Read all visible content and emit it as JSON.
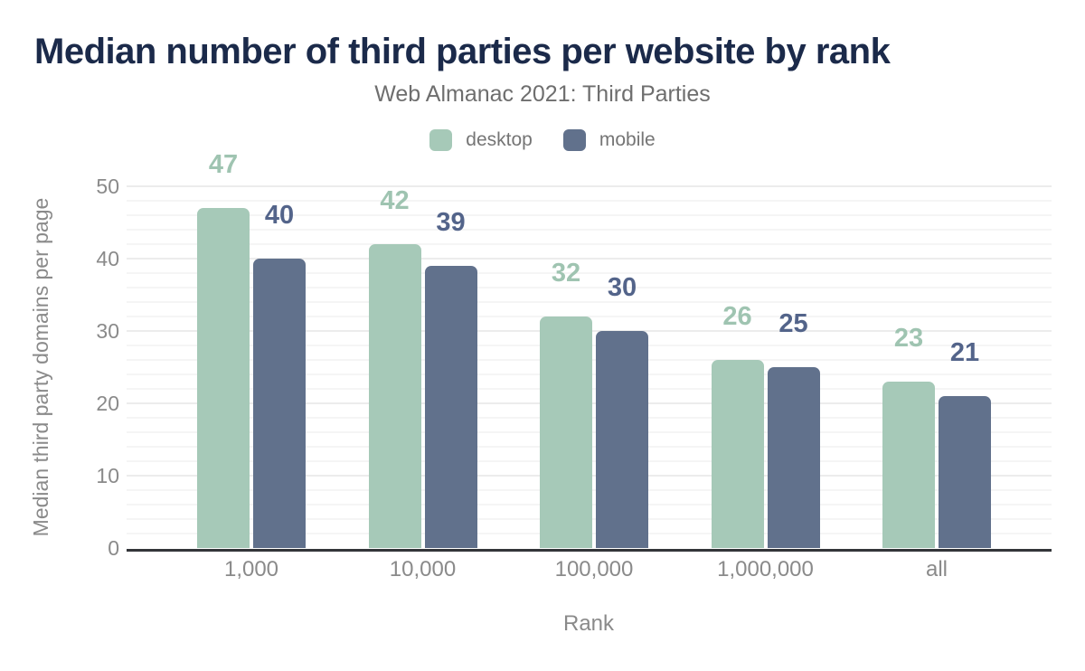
{
  "chart_data": {
    "type": "bar",
    "title": "Median number of third parties per website by rank",
    "subtitle": "Web Almanac 2021: Third Parties",
    "xlabel": "Rank",
    "ylabel": "Median third party domains per page",
    "categories": [
      "1,000",
      "10,000",
      "100,000",
      "1,000,000",
      "all"
    ],
    "series": [
      {
        "name": "desktop",
        "color": "#a6c9b8",
        "label_color": "#9fc4b1",
        "values": [
          47,
          42,
          32,
          26,
          23
        ]
      },
      {
        "name": "mobile",
        "color": "#61718c",
        "label_color": "#53648a",
        "values": [
          40,
          39,
          30,
          25,
          21
        ]
      }
    ],
    "ylim": [
      0,
      50
    ],
    "yticks": [
      0,
      10,
      20,
      30,
      40,
      50
    ],
    "minor_grid_step": 2,
    "major_grid_step": 10,
    "grid": "horizontal",
    "legend_position": "top-center",
    "data_labels": "above-bars"
  },
  "colors": {
    "title": "#1b2a4a",
    "subtitle_text": "#6e6e6e",
    "axis_text": "#8a8a8a",
    "legend_text": "#757575",
    "axis_line": "#333539",
    "gridline_major": "#ececec",
    "gridline_minor": "#f5f5f5",
    "background": "#ffffff"
  }
}
